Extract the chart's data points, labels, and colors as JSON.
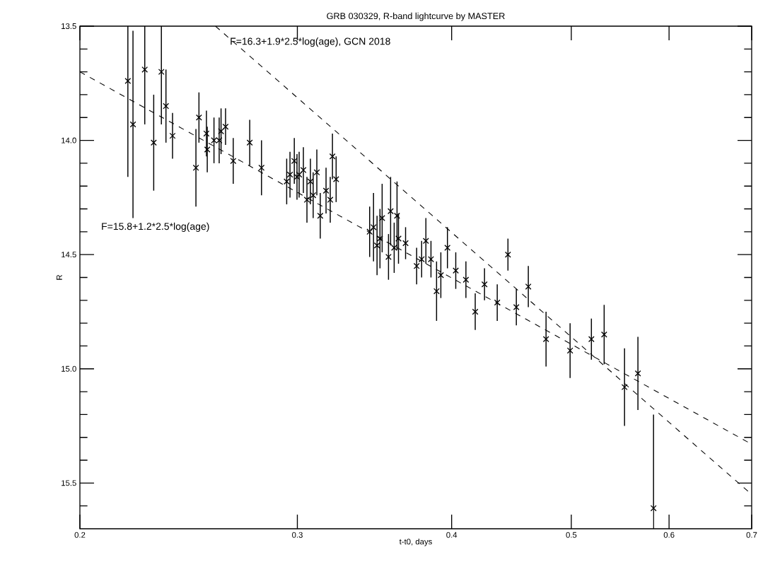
{
  "chart_data": {
    "type": "scatter",
    "title": "GRB 030329, R-band lightcurve by MASTER",
    "xlabel": "t-t0, days",
    "ylabel": "R",
    "log": "x",
    "xlim": [
      0.2,
      0.7
    ],
    "xticks": [
      0.2,
      0.3,
      0.4,
      0.5,
      0.6,
      0.7
    ],
    "ylim": [
      15.7,
      13.5
    ],
    "yticks": [
      {
        "value": 13.5,
        "label": "13.5"
      },
      {
        "value": 13.6,
        "label": null
      },
      {
        "value": 13.7,
        "label": null
      },
      {
        "value": 13.8,
        "label": null
      },
      {
        "value": 13.9,
        "label": null
      },
      {
        "value": 14,
        "label": "14.0"
      },
      {
        "value": 14.1,
        "label": null
      },
      {
        "value": 14.2,
        "label": null
      },
      {
        "value": 14.3,
        "label": null
      },
      {
        "value": 14.4,
        "label": null
      },
      {
        "value": 14.5,
        "label": "14.5"
      },
      {
        "value": 14.6,
        "label": null
      },
      {
        "value": 14.7,
        "label": null
      },
      {
        "value": 14.8,
        "label": null
      },
      {
        "value": 14.9,
        "label": null
      },
      {
        "value": 15,
        "label": "15.0"
      },
      {
        "value": 15.1,
        "label": null
      },
      {
        "value": 15.2,
        "label": null
      },
      {
        "value": 15.3,
        "label": null
      },
      {
        "value": 15.4,
        "label": null
      },
      {
        "value": 15.5,
        "label": "15.5"
      },
      {
        "value": 15.6,
        "label": null
      }
    ],
    "annotations": [
      {
        "text": "F=16.3+1.9*2.5*log(age), GCN 2018",
        "x": 0.264,
        "y": 13.57
      },
      "F=15.8+1.2*2.5*log(age)"
    ],
    "series": [
      {
        "color": "#000000",
        "marker": "cross",
        "x": [
          0.2187,
          0.2208,
          0.2257,
          0.2295,
          0.2328,
          0.2348,
          0.2377,
          0.2483,
          0.2497,
          0.2532,
          0.2536,
          0.2568,
          0.2593,
          0.2602,
          0.2624,
          0.2662,
          0.2745,
          0.2806,
          0.2941,
          0.2959,
          0.2983,
          0.2998,
          0.301,
          0.3034,
          0.3054,
          0.3074,
          0.309,
          0.3111,
          0.3131,
          0.3165,
          0.319,
          0.3203,
          0.3225,
          0.3433,
          0.3458,
          0.3481,
          0.35,
          0.3514,
          0.3556,
          0.357,
          0.3594,
          0.3613,
          0.3623,
          0.3671,
          0.3748,
          0.3783,
          0.3813,
          0.3849,
          0.389,
          0.3921,
          0.3969,
          0.4031,
          0.4108,
          0.418,
          0.4253,
          0.4355,
          0.4443,
          0.4513,
          0.4615,
          0.477,
          0.4989,
          0.5191,
          0.5316,
          0.5522,
          0.5662,
          0.5829
        ],
        "values": [
          13.74,
          13.93,
          13.69,
          14.01,
          13.7,
          13.85,
          13.98,
          14.12,
          13.9,
          13.97,
          14.04,
          14.0,
          14.0,
          13.96,
          13.94,
          14.09,
          14.01,
          14.12,
          14.18,
          14.15,
          14.09,
          14.16,
          14.15,
          14.13,
          14.26,
          14.18,
          14.24,
          14.14,
          14.33,
          14.22,
          14.26,
          14.07,
          14.17,
          14.4,
          14.38,
          14.46,
          14.43,
          14.34,
          14.51,
          14.31,
          14.47,
          14.33,
          14.43,
          14.45,
          14.55,
          14.52,
          14.44,
          14.52,
          14.66,
          14.59,
          14.47,
          14.57,
          14.61,
          14.75,
          14.63,
          14.71,
          14.5,
          14.73,
          14.64,
          14.87,
          14.92,
          14.87,
          14.85,
          15.08,
          15.02,
          15.61
        ],
        "errors": [
          [
            13.5,
            14.16
          ],
          0.41,
          [
            13.5,
            13.93
          ],
          0.21,
          0.23,
          0.16,
          0.1,
          0.17,
          0.11,
          0.1,
          0.1,
          0.1,
          0.1,
          0.1,
          0.08,
          0.1,
          0.1,
          0.12,
          0.1,
          0.1,
          0.1,
          0.1,
          0.1,
          0.1,
          0.1,
          0.1,
          0.1,
          0.1,
          0.1,
          0.1,
          0.1,
          0.1,
          0.1,
          0.11,
          0.15,
          0.13,
          0.13,
          0.15,
          0.1,
          0.15,
          0.11,
          0.15,
          0.11,
          0.07,
          0.08,
          0.08,
          0.1,
          0.08,
          0.13,
          0.1,
          0.09,
          0.08,
          0.08,
          0.08,
          0.07,
          0.08,
          0.07,
          0.08,
          0.09,
          0.12,
          0.12,
          0.09,
          0.13,
          0.17,
          0.16,
          [
            15.2,
            15.7
          ]
        ]
      },
      {
        "type": "line",
        "color": "#000000",
        "line_style": "dashed",
        "x": [
          0.2,
          0.7
        ],
        "values": [
          13.7,
          15.33
        ]
      },
      {
        "type": "line",
        "color": "#000000",
        "line_style": "dashed",
        "x": [
          0.2575,
          0.7
        ],
        "values": [
          13.5,
          15.55
        ]
      }
    ]
  }
}
